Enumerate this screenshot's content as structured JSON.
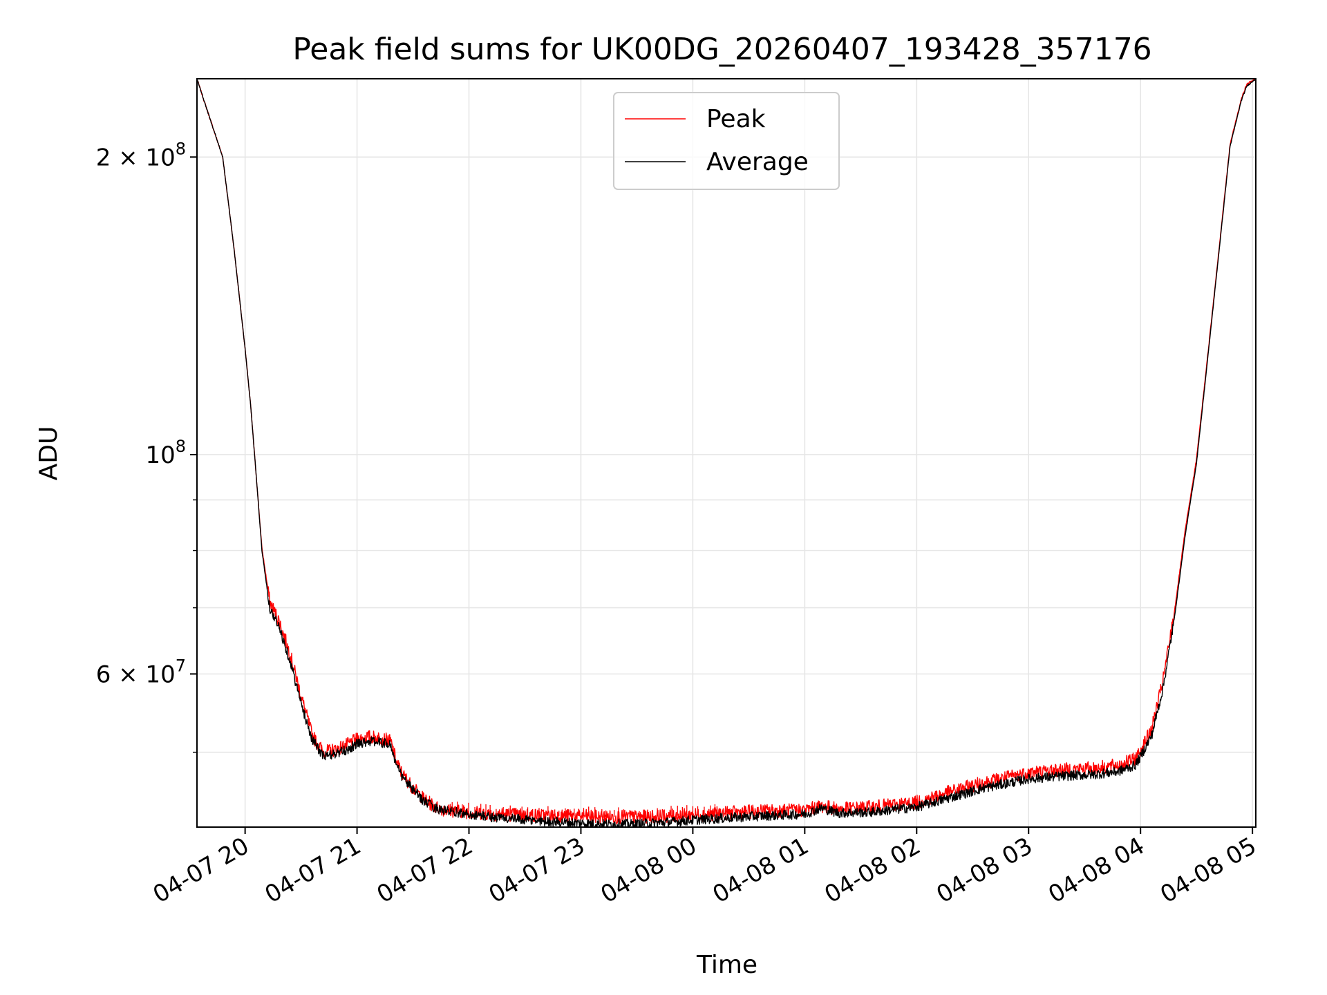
{
  "chart_data": {
    "type": "line",
    "title": "Peak field sums for UK00DG_20260407_193428_357176",
    "xlabel": "Time",
    "ylabel": "ADU",
    "x_unit": "hours since 2026-04-07 00:00",
    "xlim": [
      19.57,
      29.03
    ],
    "ylim": [
      42000000,
      240000000
    ],
    "y_scale": "log",
    "grid": true,
    "legend_position": "top-center",
    "x_ticks": [
      {
        "value": 20,
        "label": "04-07 20"
      },
      {
        "value": 21,
        "label": "04-07 21"
      },
      {
        "value": 22,
        "label": "04-07 22"
      },
      {
        "value": 23,
        "label": "04-07 23"
      },
      {
        "value": 24,
        "label": "04-08 00"
      },
      {
        "value": 25,
        "label": "04-08 01"
      },
      {
        "value": 26,
        "label": "04-08 02"
      },
      {
        "value": 27,
        "label": "04-08 03"
      },
      {
        "value": 28,
        "label": "04-08 04"
      },
      {
        "value": 29,
        "label": "04-08 05"
      }
    ],
    "y_major_ticks": [
      {
        "value": 60000000,
        "mantissa": "6 × 10",
        "exp": "7"
      },
      {
        "value": 100000000,
        "mantissa": "10",
        "exp": "8"
      },
      {
        "value": 200000000,
        "mantissa": "2 × 10",
        "exp": "8"
      }
    ],
    "y_minor_ticks": [
      50000000,
      70000000,
      80000000,
      90000000
    ],
    "legend": [
      {
        "name": "Peak",
        "color": "#ff0000"
      },
      {
        "name": "Average",
        "color": "#000000"
      }
    ],
    "series": [
      {
        "name": "Average",
        "color": "#000000",
        "x": [
          19.57,
          19.65,
          19.72,
          19.8,
          19.9,
          20.0,
          20.05,
          20.1,
          20.15,
          20.22,
          20.3,
          20.4,
          20.5,
          20.6,
          20.7,
          20.8,
          20.9,
          21.0,
          21.1,
          21.2,
          21.3,
          21.35,
          21.4,
          21.5,
          21.6,
          21.7,
          21.8,
          22.0,
          22.2,
          22.5,
          22.8,
          23.0,
          23.2,
          23.5,
          23.8,
          24.0,
          24.3,
          24.6,
          25.0,
          25.15,
          25.3,
          25.6,
          26.0,
          26.3,
          26.6,
          27.0,
          27.3,
          27.6,
          27.8,
          27.95,
          28.0,
          28.1,
          28.2,
          28.3,
          28.4,
          28.5,
          28.6,
          28.7,
          28.8,
          28.9,
          28.95,
          29.03
        ],
        "values": [
          240000000,
          225000000,
          213000000,
          200000000,
          162000000,
          128000000,
          112000000,
          95000000,
          80000000,
          70000000,
          67000000,
          62000000,
          56000000,
          51500000,
          49500000,
          49800000,
          50200000,
          51000000,
          51300000,
          51200000,
          50900000,
          48500000,
          47300000,
          45800000,
          44600000,
          43900000,
          43600000,
          43300000,
          43000000,
          42700000,
          42500000,
          42400000,
          42300000,
          42300000,
          42500000,
          42700000,
          42900000,
          43100000,
          43300000,
          43900000,
          43400000,
          43500000,
          44000000,
          45000000,
          46000000,
          47000000,
          47300000,
          47500000,
          47800000,
          48500000,
          49500000,
          52000000,
          58000000,
          68000000,
          83000000,
          98000000,
          125000000,
          160000000,
          205000000,
          228000000,
          236000000,
          240000000
        ]
      },
      {
        "name": "Peak",
        "color": "#ff0000",
        "x": [
          19.57,
          19.65,
          19.72,
          19.8,
          19.9,
          20.0,
          20.05,
          20.1,
          20.15,
          20.22,
          20.3,
          20.4,
          20.5,
          20.6,
          20.7,
          20.8,
          20.9,
          21.0,
          21.1,
          21.2,
          21.3,
          21.35,
          21.4,
          21.5,
          21.6,
          21.7,
          21.8,
          22.0,
          22.2,
          22.5,
          22.8,
          23.0,
          23.2,
          23.5,
          23.8,
          24.0,
          24.3,
          24.6,
          25.0,
          25.15,
          25.3,
          25.6,
          26.0,
          26.3,
          26.6,
          27.0,
          27.3,
          27.6,
          27.8,
          27.95,
          28.0,
          28.1,
          28.2,
          28.3,
          28.4,
          28.5,
          28.6,
          28.7,
          28.8,
          28.9,
          28.95,
          29.03
        ],
        "values": [
          240000000,
          225000000,
          213000000,
          200000000,
          162000000,
          128000000,
          112000000,
          95000000,
          80500000,
          71000000,
          68000000,
          63000000,
          57000000,
          52000000,
          50000000,
          50300000,
          50800000,
          51500000,
          51800000,
          51700000,
          51300000,
          49000000,
          47600000,
          46000000,
          44800000,
          44000000,
          43700000,
          43500000,
          43300000,
          43200000,
          43100000,
          43100000,
          43000000,
          43000000,
          43100000,
          43200000,
          43400000,
          43600000,
          43700000,
          44100000,
          43800000,
          44000000,
          44500000,
          45600000,
          46600000,
          47700000,
          48000000,
          48200000,
          48500000,
          49200000,
          50200000,
          52800000,
          59000000,
          69000000,
          84000000,
          99000000,
          126000000,
          161000000,
          206000000,
          229000000,
          237000000,
          240000000
        ]
      }
    ]
  }
}
